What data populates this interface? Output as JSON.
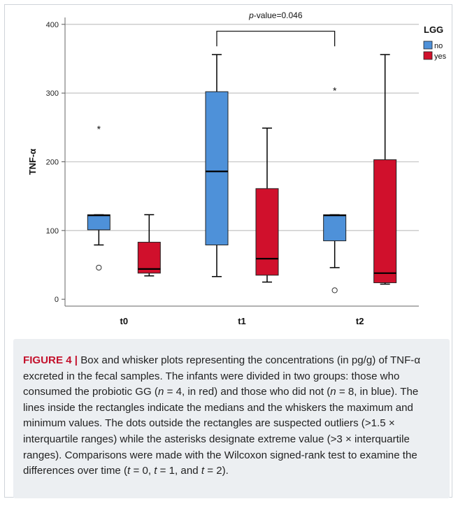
{
  "figure": {
    "label": "FIGURE 4 |",
    "caption_html": " Box and whisker plots representing the concentrations (in pg/g) of TNF-&alpha; excreted in the fecal samples. The infants were divided in two groups: those who consumed the probiotic GG (<i>n</i> = 4, in red) and those who did not (<i>n</i> = 8, in blue). The lines inside the rectangles indicate the medians and the whiskers the maximum and minimum values. The dots outside the rectangles are suspected outliers (&gt;1.5 &times; interquartile ranges) while the asterisks designate extreme value (&gt;3 &times; interquartile ranges). Comparisons were made with the Wilcoxon signed-rank test to examine the differences over time (<i>t</i> = 0, <i>t</i> = 1, and <i>t</i> = 2)."
  },
  "chart_data": {
    "type": "box",
    "ylabel": "TNF-α",
    "xlabel": "",
    "ylim": [
      -10,
      410
    ],
    "yticks": [
      0,
      100,
      200,
      300,
      400
    ],
    "categories": [
      "t0",
      "t1",
      "t2"
    ],
    "grid": true,
    "legend": {
      "title": "LGG",
      "placement": "top-right"
    },
    "annotation": {
      "prefix": "p",
      "text": "-value=0.046",
      "from": "t1",
      "to": "t2"
    },
    "series": [
      {
        "name": "no",
        "color": "#4e91d9",
        "boxes": [
          {
            "category": "t0",
            "min": 79,
            "q1": 101,
            "median": 122,
            "q3": 123,
            "max": 123,
            "outliers": [
              46
            ],
            "extremes": [
              249
            ]
          },
          {
            "category": "t1",
            "min": 33,
            "q1": 79,
            "median": 186,
            "q3": 302,
            "max": 356,
            "outliers": [],
            "extremes": []
          },
          {
            "category": "t2",
            "min": 46,
            "q1": 85,
            "median": 122,
            "q3": 123,
            "max": 123,
            "outliers": [
              13
            ],
            "extremes": [
              305
            ]
          }
        ]
      },
      {
        "name": "yes",
        "color": "#d0102c",
        "boxes": [
          {
            "category": "t0",
            "min": 34,
            "q1": 38,
            "median": 44,
            "q3": 83,
            "max": 123,
            "outliers": [],
            "extremes": []
          },
          {
            "category": "t1",
            "min": 25,
            "q1": 35,
            "median": 59,
            "q3": 161,
            "max": 249,
            "outliers": [],
            "extremes": []
          },
          {
            "category": "t2",
            "min": 22,
            "q1": 24,
            "median": 38,
            "q3": 203,
            "max": 356,
            "outliers": [],
            "extremes": []
          }
        ]
      }
    ]
  }
}
